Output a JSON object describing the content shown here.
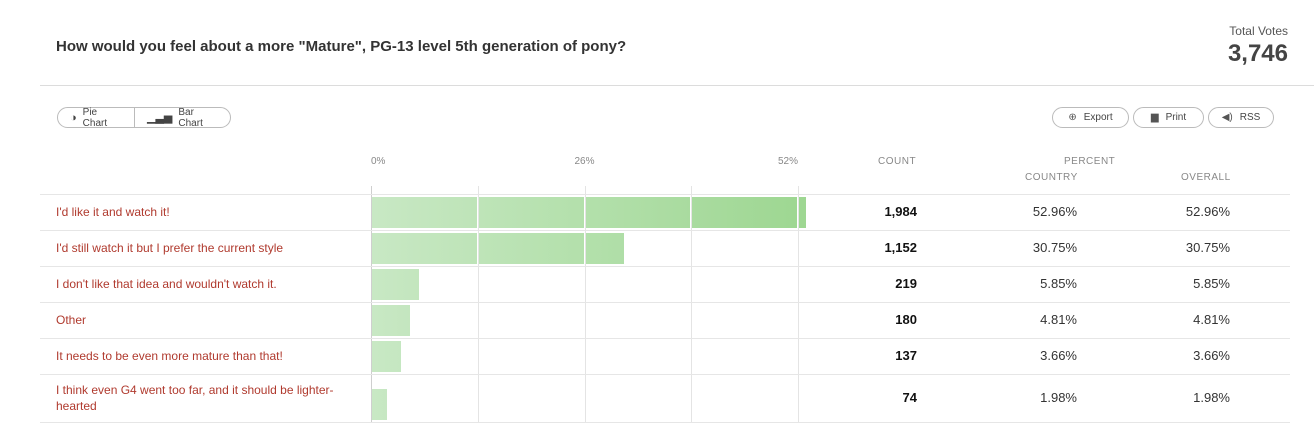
{
  "poll": {
    "question": "How would you feel about a more \"Mature\", PG-13 level 5th generation of pony?",
    "total_votes_label": "Total Votes",
    "total_votes": "3,746"
  },
  "controls": {
    "pie_label": "Pie Chart",
    "bar_label": "Bar Chart",
    "export_label": "Export",
    "print_label": "Print",
    "rss_label": "RSS"
  },
  "columns": {
    "count": "COUNT",
    "percent": "PERCENT",
    "country": "COUNTRY",
    "overall": "OVERALL"
  },
  "colors": {
    "bar_light": "#c8e8c4",
    "bar_dark": "#9ed792",
    "label_red": "#b03a2e"
  },
  "chart_data": {
    "type": "bar",
    "orientation": "horizontal",
    "x_ticks": [
      "0%",
      "26%",
      "52%"
    ],
    "xlim": [
      0,
      52
    ],
    "grid": true,
    "categories": [
      "I'd like it and watch it!",
      "I'd still watch it but I prefer the current style",
      "I don't like that idea and wouldn't watch it.",
      "Other",
      "It needs to be even more mature than that!",
      "I think even G4 went too far, and it should be lighter-hearted"
    ],
    "counts": [
      "1,984",
      "1,152",
      "219",
      "180",
      "137",
      "74"
    ],
    "values": [
      52.96,
      30.75,
      5.85,
      4.81,
      3.66,
      1.98
    ],
    "country_pct": [
      "52.96%",
      "30.75%",
      "5.85%",
      "4.81%",
      "3.66%",
      "1.98%"
    ],
    "overall_pct": [
      "52.96%",
      "30.75%",
      "5.85%",
      "4.81%",
      "3.66%",
      "1.98%"
    ]
  }
}
